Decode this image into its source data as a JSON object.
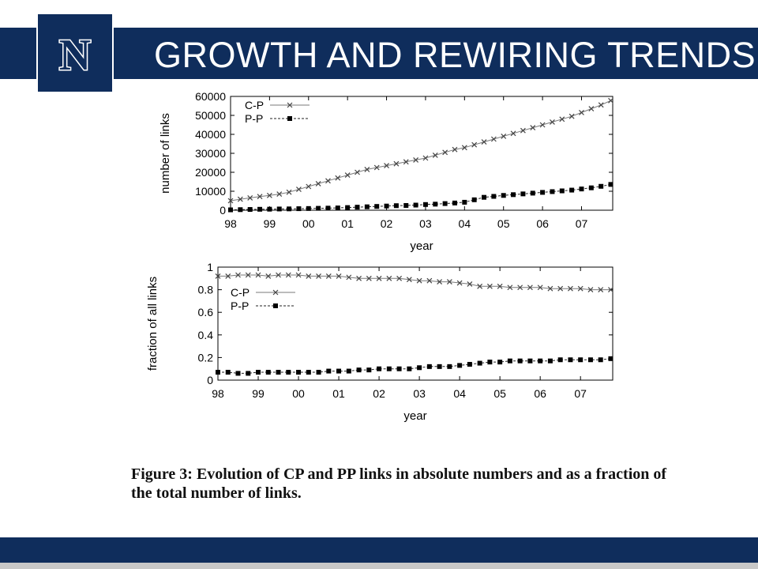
{
  "slide": {
    "title": "GROWTH AND REWIRING TRENDS",
    "logo_letter": "N",
    "caption": "Figure 3:  Evolution of CP and PP links in absolute numbers and as a fraction of the total number of links.",
    "colors": {
      "header": "#0f2d5c",
      "footer_strip": "#c8c8c8"
    }
  },
  "chart_data": [
    {
      "type": "line",
      "xlabel": "year",
      "ylabel": "number of links",
      "x_tick_labels": [
        "98",
        "99",
        "00",
        "01",
        "02",
        "03",
        "04",
        "05",
        "06",
        "07"
      ],
      "y_ticks": [
        0,
        10000,
        20000,
        30000,
        40000,
        50000,
        60000
      ],
      "xlim": [
        1998,
        2007.8
      ],
      "ylim": [
        0,
        60000
      ],
      "legend_position": "top-left",
      "grid": false,
      "series": [
        {
          "name": "C-P",
          "marker": "x",
          "x": [
            1998,
            1998.25,
            1998.5,
            1998.75,
            1999,
            1999.25,
            1999.5,
            1999.75,
            2000,
            2000.25,
            2000.5,
            2000.75,
            2001,
            2001.25,
            2001.5,
            2001.75,
            2002,
            2002.25,
            2002.5,
            2002.75,
            2003,
            2003.25,
            2003.5,
            2003.75,
            2004,
            2004.25,
            2004.5,
            2004.75,
            2005,
            2005.25,
            2005.5,
            2005.75,
            2006,
            2006.25,
            2006.5,
            2006.75,
            2007,
            2007.25,
            2007.5,
            2007.75
          ],
          "y": [
            5000,
            5800,
            6500,
            7200,
            7800,
            8500,
            9500,
            11000,
            12500,
            14000,
            15500,
            17000,
            18500,
            20000,
            21500,
            22500,
            23500,
            24500,
            25500,
            26500,
            27500,
            29000,
            30500,
            32000,
            33000,
            34500,
            36000,
            37500,
            39000,
            40500,
            42000,
            43500,
            45000,
            46500,
            48000,
            49500,
            51500,
            53500,
            55500,
            57800
          ]
        },
        {
          "name": "P-P",
          "marker": "filled-square",
          "x": [
            1998,
            1998.25,
            1998.5,
            1998.75,
            1999,
            1999.25,
            1999.5,
            1999.75,
            2000,
            2000.25,
            2000.5,
            2000.75,
            2001,
            2001.25,
            2001.5,
            2001.75,
            2002,
            2002.25,
            2002.5,
            2002.75,
            2003,
            2003.25,
            2003.5,
            2003.75,
            2004,
            2004.25,
            2004.5,
            2004.75,
            2005,
            2005.25,
            2005.5,
            2005.75,
            2006,
            2006.25,
            2006.5,
            2006.75,
            2007,
            2007.25,
            2007.5,
            2007.75
          ],
          "y": [
            200,
            300,
            400,
            500,
            550,
            650,
            700,
            800,
            900,
            1000,
            1100,
            1200,
            1400,
            1600,
            1800,
            2000,
            2200,
            2400,
            2500,
            2700,
            3000,
            3200,
            3500,
            3800,
            4200,
            5500,
            6800,
            7300,
            7800,
            8200,
            8600,
            9000,
            9400,
            9800,
            10200,
            10600,
            11200,
            11800,
            12600,
            13600
          ]
        }
      ]
    },
    {
      "type": "line",
      "xlabel": "year",
      "ylabel": "fraction of all links",
      "x_tick_labels": [
        "98",
        "99",
        "00",
        "01",
        "02",
        "03",
        "04",
        "05",
        "06",
        "07"
      ],
      "y_ticks": [
        0,
        0.2,
        0.4,
        0.6,
        0.8,
        1
      ],
      "xlim": [
        1998,
        2007.8
      ],
      "ylim": [
        0,
        1
      ],
      "legend_position": "left",
      "grid": false,
      "series": [
        {
          "name": "C-P",
          "marker": "x",
          "x": [
            1998,
            1998.25,
            1998.5,
            1998.75,
            1999,
            1999.25,
            1999.5,
            1999.75,
            2000,
            2000.25,
            2000.5,
            2000.75,
            2001,
            2001.25,
            2001.5,
            2001.75,
            2002,
            2002.25,
            2002.5,
            2002.75,
            2003,
            2003.25,
            2003.5,
            2003.75,
            2004,
            2004.25,
            2004.5,
            2004.75,
            2005,
            2005.25,
            2005.5,
            2005.75,
            2006,
            2006.25,
            2006.5,
            2006.75,
            2007,
            2007.25,
            2007.5,
            2007.75
          ],
          "y": [
            0.92,
            0.92,
            0.93,
            0.93,
            0.93,
            0.92,
            0.93,
            0.93,
            0.93,
            0.92,
            0.92,
            0.92,
            0.92,
            0.91,
            0.9,
            0.9,
            0.9,
            0.9,
            0.9,
            0.89,
            0.88,
            0.88,
            0.87,
            0.87,
            0.86,
            0.85,
            0.83,
            0.83,
            0.83,
            0.82,
            0.82,
            0.82,
            0.82,
            0.81,
            0.81,
            0.81,
            0.81,
            0.8,
            0.8,
            0.8
          ]
        },
        {
          "name": "P-P",
          "marker": "filled-square",
          "x": [
            1998,
            1998.25,
            1998.5,
            1998.75,
            1999,
            1999.25,
            1999.5,
            1999.75,
            2000,
            2000.25,
            2000.5,
            2000.75,
            2001,
            2001.25,
            2001.5,
            2001.75,
            2002,
            2002.25,
            2002.5,
            2002.75,
            2003,
            2003.25,
            2003.5,
            2003.75,
            2004,
            2004.25,
            2004.5,
            2004.75,
            2005,
            2005.25,
            2005.5,
            2005.75,
            2006,
            2006.25,
            2006.5,
            2006.75,
            2007,
            2007.25,
            2007.5,
            2007.75
          ],
          "y": [
            0.07,
            0.07,
            0.06,
            0.06,
            0.07,
            0.07,
            0.07,
            0.07,
            0.07,
            0.07,
            0.07,
            0.08,
            0.08,
            0.08,
            0.09,
            0.09,
            0.1,
            0.1,
            0.1,
            0.1,
            0.11,
            0.12,
            0.12,
            0.12,
            0.13,
            0.14,
            0.15,
            0.16,
            0.16,
            0.17,
            0.17,
            0.17,
            0.17,
            0.17,
            0.18,
            0.18,
            0.18,
            0.18,
            0.18,
            0.19
          ]
        }
      ]
    }
  ]
}
